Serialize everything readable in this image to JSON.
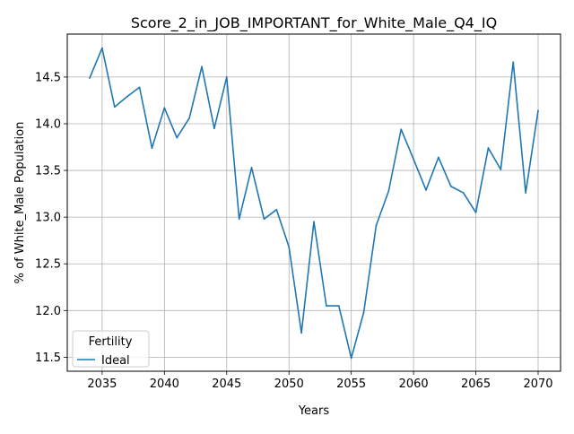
{
  "chart_data": {
    "type": "line",
    "title": "Score_2_in_JOB_IMPORTANT_for_White_Male_Q4_IQ",
    "xlabel": "Years",
    "ylabel": "% of White_Male Population",
    "xlim": [
      2032.2,
      2071.8
    ],
    "ylim": [
      11.35,
      14.96
    ],
    "xticks": [
      2035,
      2040,
      2045,
      2050,
      2055,
      2060,
      2065,
      2070
    ],
    "yticks": [
      11.5,
      12.0,
      12.5,
      13.0,
      13.5,
      14.0,
      14.5
    ],
    "xtick_labels": [
      "2035",
      "2040",
      "2045",
      "2050",
      "2055",
      "2060",
      "2065",
      "2070"
    ],
    "ytick_labels": [
      "11.5",
      "12.0",
      "12.5",
      "13.0",
      "13.5",
      "14.0",
      "14.5"
    ],
    "grid": true,
    "legend": {
      "title": "Fertility",
      "position": "lower-left",
      "entries": [
        "Ideal"
      ]
    },
    "series": [
      {
        "name": "Ideal",
        "color": "#1f77b4",
        "x": [
          2034,
          2035,
          2036,
          2037,
          2038,
          2039,
          2040,
          2041,
          2042,
          2043,
          2044,
          2045,
          2046,
          2047,
          2048,
          2049,
          2050,
          2051,
          2052,
          2053,
          2054,
          2055,
          2056,
          2057,
          2058,
          2059,
          2060,
          2061,
          2062,
          2063,
          2064,
          2065,
          2066,
          2067,
          2068,
          2069,
          2070
        ],
        "values": [
          14.49,
          14.81,
          14.18,
          14.29,
          14.39,
          13.74,
          14.17,
          13.85,
          14.06,
          14.61,
          13.95,
          14.5,
          12.98,
          13.53,
          12.98,
          13.08,
          12.68,
          11.76,
          12.95,
          12.05,
          12.05,
          11.49,
          11.98,
          12.91,
          13.28,
          13.94,
          13.62,
          13.29,
          13.64,
          13.33,
          13.26,
          13.05,
          13.74,
          13.51,
          14.66,
          13.26,
          14.14
        ]
      }
    ]
  }
}
